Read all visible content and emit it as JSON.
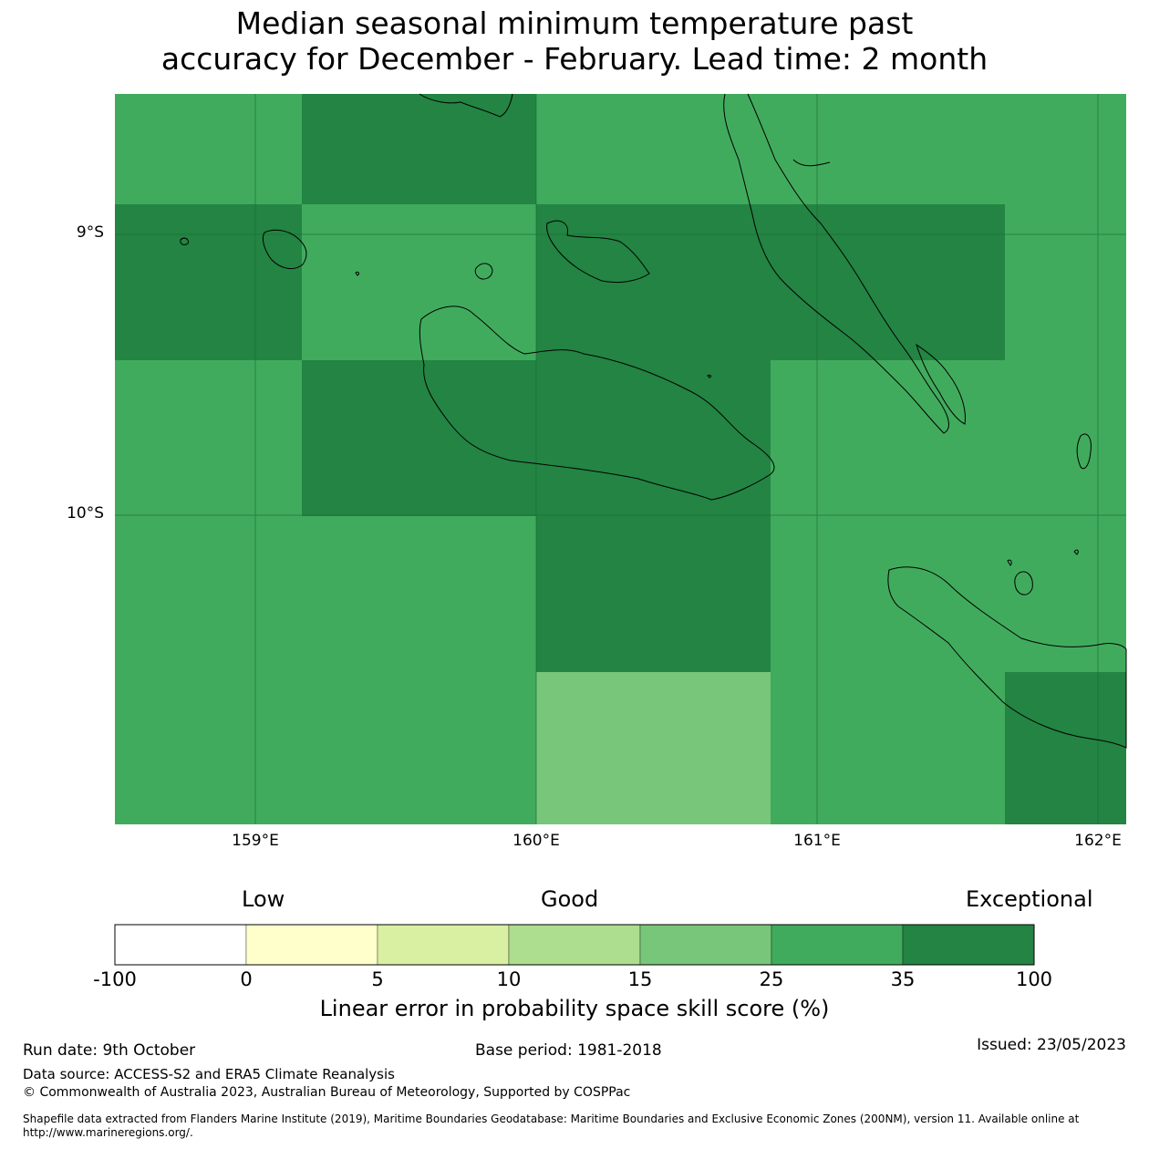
{
  "title": {
    "line1": "Median seasonal minimum temperature past",
    "line2": "accuracy for December - February. Lead time: 2 month"
  },
  "map": {
    "lat_labels": [
      "9°S",
      "10°S"
    ],
    "lon_labels": [
      "159°E",
      "160°E",
      "161°E",
      "162°E"
    ],
    "extent": {
      "lon_min": 158.5,
      "lon_max": 162.1,
      "lat_min": -11.1,
      "lat_max": -8.5
    },
    "cell_colors": {
      "c25": "#41ab5d",
      "c35": "#238443",
      "c15": "#78c679"
    }
  },
  "colorbar": {
    "category_labels": [
      "Low",
      "Good",
      "Exceptional"
    ],
    "ticks": [
      "-100",
      "0",
      "5",
      "10",
      "15",
      "25",
      "35",
      "100"
    ],
    "colors": [
      "#ffffff",
      "#ffffcc",
      "#d9f0a3",
      "#addd8e",
      "#78c679",
      "#41ab5d",
      "#238443"
    ],
    "title": "Linear error in probability space skill score (%)"
  },
  "footer": {
    "run_date": "Run date: 9th October",
    "base_period": "Base period: 1981-2018",
    "issued": "Issued: 23/05/2023",
    "data_source": "Data source: ACCESS-S2 and ERA5 Climate Reanalysis",
    "copyright": "© Commonwealth of Australia 2023, Australian Bureau of Meteorology, Supported by COSPPac",
    "shapefile": "Shapefile data extracted from Flanders Marine Institute (2019), Maritime Boundaries Geodatabase: Maritime Boundaries and Exclusive Economic Zones (200NM), version 11. Available online at http://www.marineregions.org/."
  }
}
